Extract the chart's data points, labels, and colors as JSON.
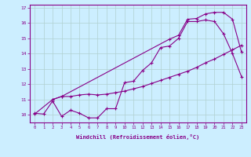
{
  "xlabel": "Windchill (Refroidissement éolien,°C)",
  "background_color": "#cceeff",
  "grid_color": "#b0d0d0",
  "line_color": "#880088",
  "xlim": [
    -0.5,
    23.5
  ],
  "ylim": [
    9.5,
    17.2
  ],
  "xticks": [
    0,
    1,
    2,
    3,
    4,
    5,
    6,
    7,
    8,
    9,
    10,
    11,
    12,
    13,
    14,
    15,
    16,
    17,
    18,
    19,
    20,
    21,
    22,
    23
  ],
  "yticks": [
    10,
    11,
    12,
    13,
    14,
    15,
    16,
    17
  ],
  "series1_x": [
    0,
    1,
    2,
    3,
    4,
    5,
    6,
    7,
    8,
    9,
    10,
    11,
    12,
    13,
    14,
    15,
    16,
    17,
    18,
    19,
    20,
    21,
    22,
    23
  ],
  "series1_y": [
    10.1,
    10.05,
    10.9,
    9.9,
    10.3,
    10.1,
    9.8,
    9.8,
    10.4,
    10.4,
    12.1,
    12.2,
    12.9,
    13.4,
    14.4,
    14.5,
    15.0,
    16.1,
    16.1,
    16.2,
    16.1,
    15.3,
    14.0,
    12.5
  ],
  "series2_x": [
    0,
    2,
    3,
    4,
    5,
    6,
    7,
    8,
    9,
    10,
    11,
    12,
    13,
    14,
    15,
    16,
    17,
    18,
    19,
    20,
    21,
    22,
    23
  ],
  "series2_y": [
    10.05,
    11.0,
    11.2,
    11.2,
    11.3,
    11.35,
    11.3,
    11.35,
    11.45,
    11.55,
    11.7,
    11.85,
    12.05,
    12.25,
    12.45,
    12.65,
    12.85,
    13.1,
    13.4,
    13.65,
    13.95,
    14.25,
    14.55
  ],
  "series3_x": [
    2,
    3,
    15,
    16,
    17,
    18,
    19,
    20,
    21,
    22,
    23
  ],
  "series3_y": [
    11.0,
    11.2,
    14.95,
    15.2,
    16.25,
    16.3,
    16.6,
    16.7,
    16.7,
    16.25,
    14.1
  ]
}
